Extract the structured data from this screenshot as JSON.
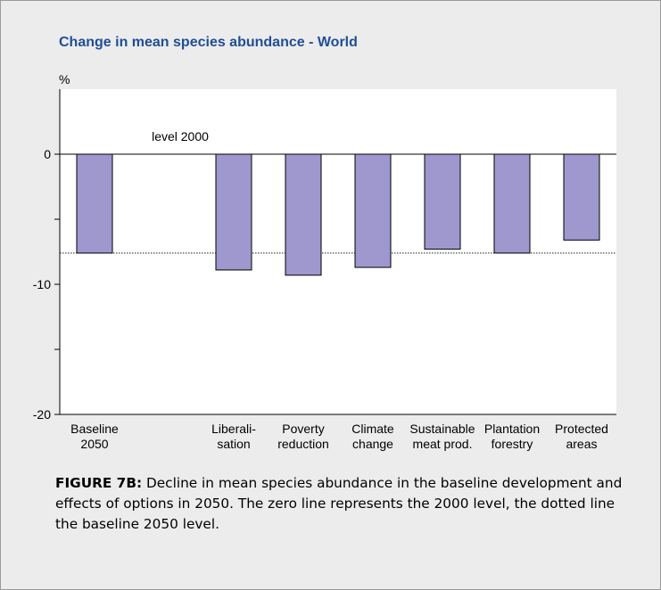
{
  "colors": {
    "panel_background": "#ececec",
    "plot_background": "#ffffff",
    "title": "#1f4e96",
    "bar_fill": "#9e98cf",
    "bar_stroke": "#000000"
  },
  "chart_data": {
    "type": "bar",
    "title": "Change in mean species abundance - World",
    "ylabel": "%",
    "ylim": [
      -20,
      5
    ],
    "yticks": [
      {
        "value": 0,
        "label": "0"
      },
      {
        "value": -5,
        "label": ""
      },
      {
        "value": -10,
        "label": "-10"
      },
      {
        "value": -15,
        "label": ""
      },
      {
        "value": -20,
        "label": "-20"
      }
    ],
    "categories": [
      {
        "lines": [
          "Baseline",
          "2050"
        ]
      },
      {
        "lines": [
          "",
          ""
        ]
      },
      {
        "lines": [
          "Liberali-",
          "sation"
        ]
      },
      {
        "lines": [
          "Poverty",
          "reduction"
        ]
      },
      {
        "lines": [
          "Climate",
          "change"
        ]
      },
      {
        "lines": [
          "Sustainable",
          "meat prod."
        ]
      },
      {
        "lines": [
          "Plantation",
          "forestry"
        ]
      },
      {
        "lines": [
          "Protected",
          "areas"
        ]
      }
    ],
    "values": [
      -7.6,
      null,
      -8.9,
      -9.3,
      -8.7,
      -7.3,
      -7.6,
      -6.6
    ],
    "reference_lines": [
      {
        "value": 0,
        "style": "solid",
        "label": "level 2000"
      },
      {
        "value": -7.6,
        "style": "dotted",
        "label": ""
      }
    ],
    "grid": false
  },
  "caption": {
    "label": "FIGURE 7B:",
    "text": "Decline in mean species abundance in the baseline development and effects of options in 2050. The zero line represents the 2000 level, the dotted line the baseline 2050 level."
  }
}
